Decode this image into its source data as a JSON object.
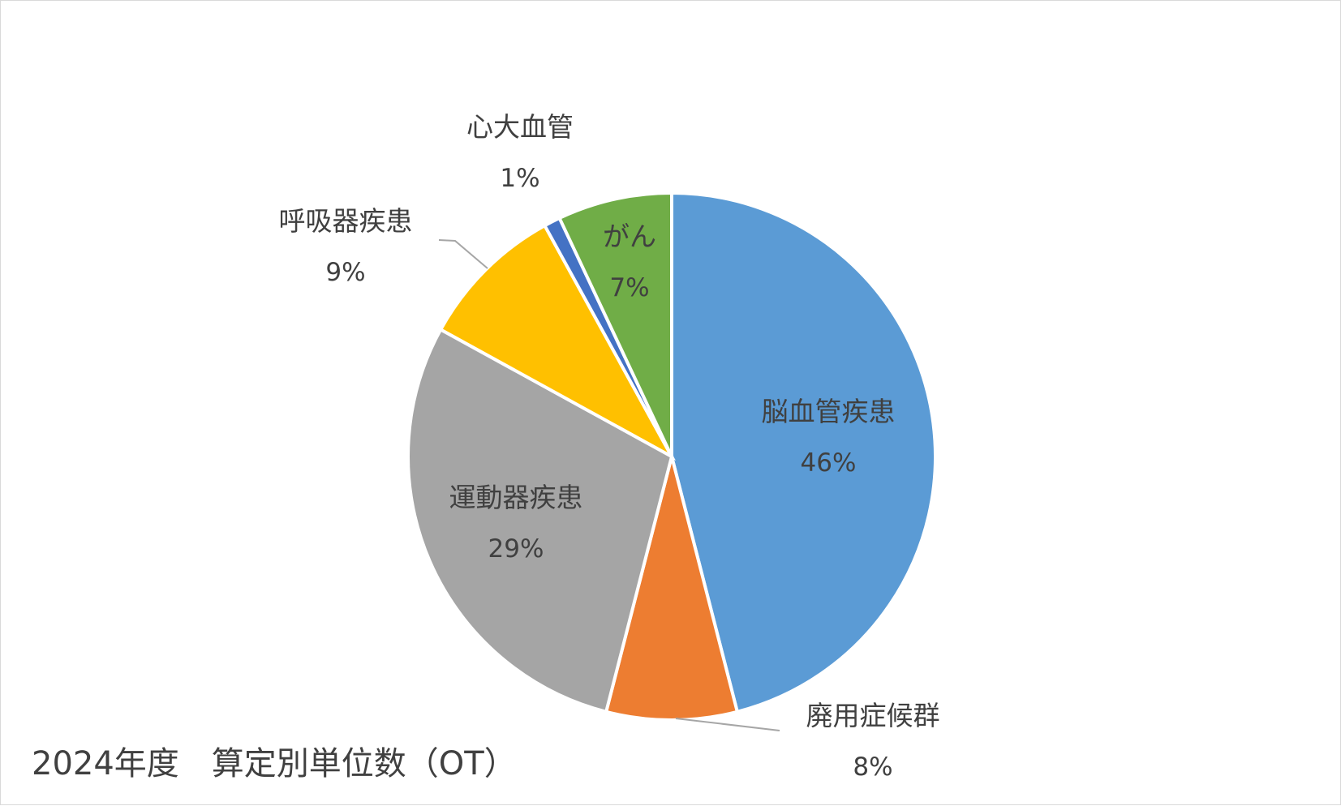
{
  "chart_data": {
    "type": "pie",
    "title": "2024年度　算定別単位数（OT）",
    "slices": [
      {
        "label": "脳血管疾患",
        "value": 46,
        "percent_label": "46%",
        "color": "#5B9BD5"
      },
      {
        "label": "廃用症候群",
        "value": 8,
        "percent_label": "8%",
        "color": "#ED7D31"
      },
      {
        "label": "運動器疾患",
        "value": 29,
        "percent_label": "29%",
        "color": "#A5A5A5"
      },
      {
        "label": "呼吸器疾患",
        "value": 9,
        "percent_label": "9%",
        "color": "#FFC000"
      },
      {
        "label": "心大血管",
        "value": 1,
        "percent_label": "1%",
        "color": "#4472C4"
      },
      {
        "label": "がん",
        "value": 7,
        "percent_label": "7%",
        "color": "#70AD47"
      }
    ],
    "start_angle_deg": 0,
    "direction": "clockwise",
    "legend": "none",
    "data_labels": "category and percentage"
  }
}
